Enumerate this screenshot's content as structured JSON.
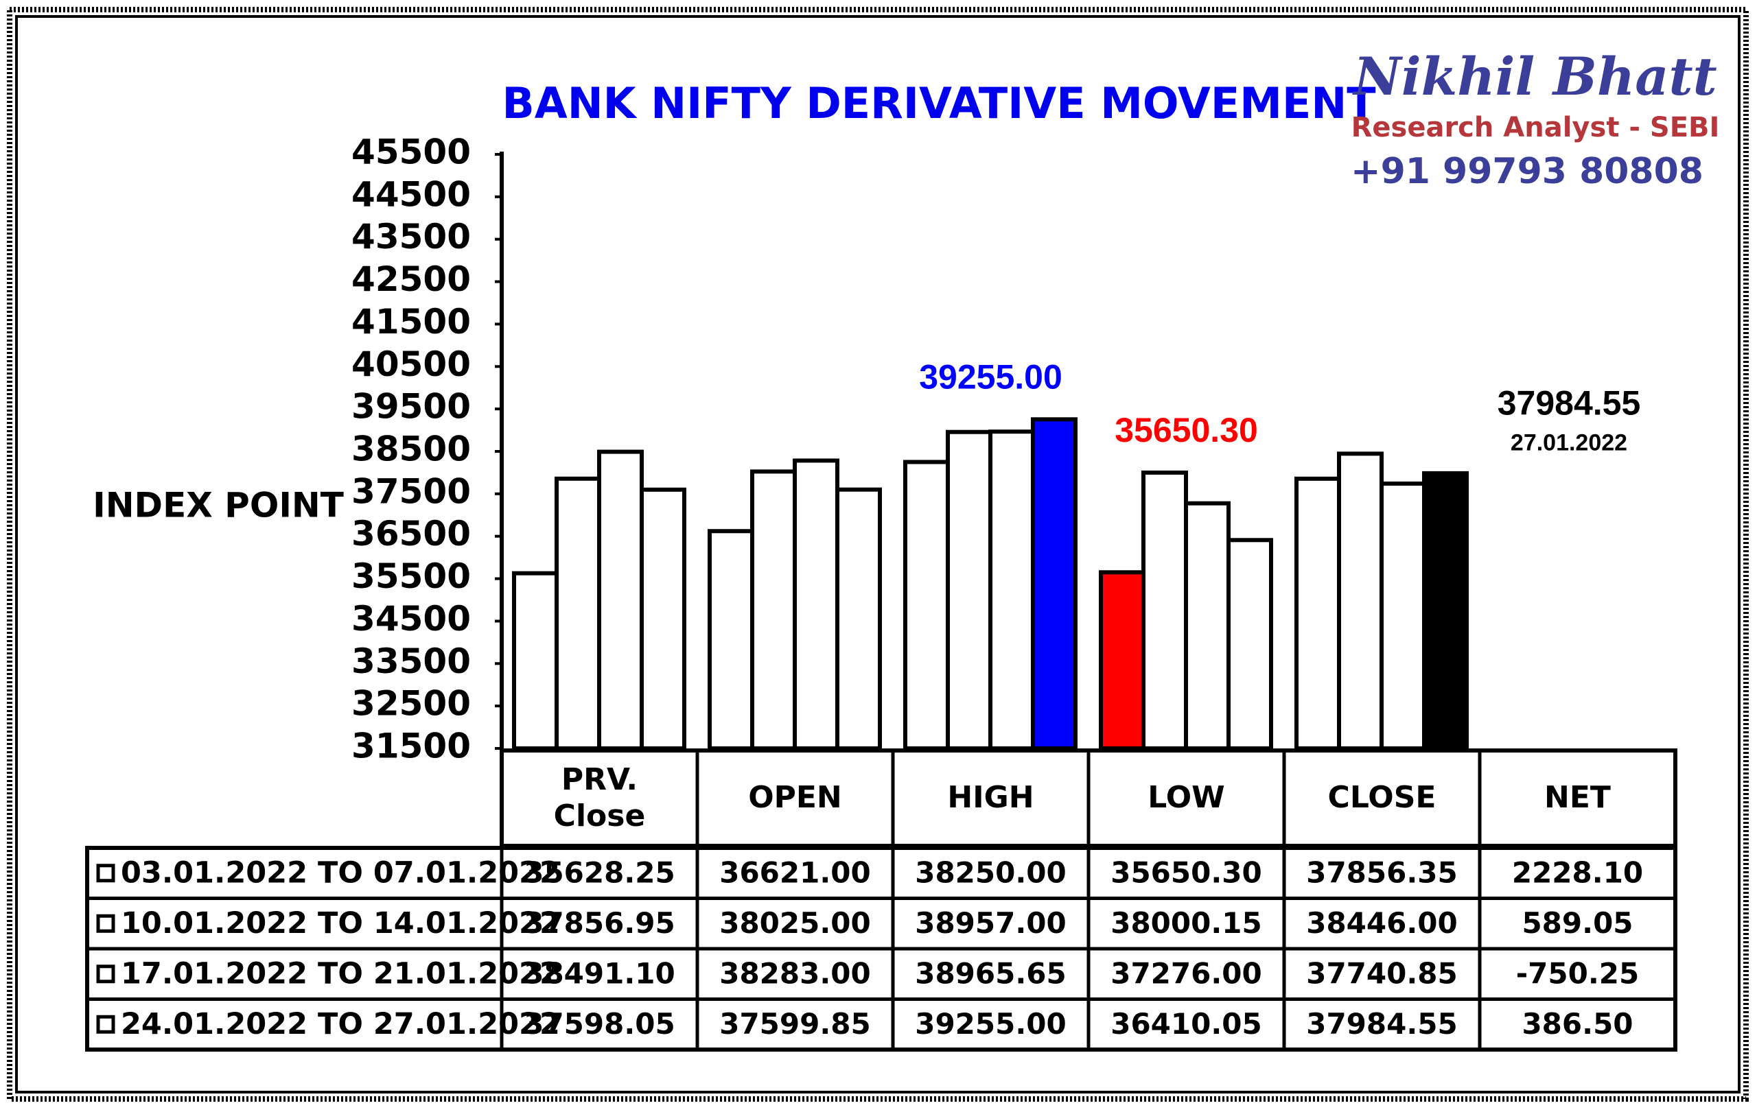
{
  "branding": {
    "name": "Nikhil Bhatt",
    "role": "Research Analyst - SEBI",
    "phone": "+91 99793 80808"
  },
  "chart_data": {
    "type": "bar",
    "title": "BANK NIFTY DERIVATIVE MOVEMENT",
    "ylabel": "INDEX POINT",
    "categories": [
      "PRV. Close",
      "OPEN",
      "HIGH",
      "LOW",
      "CLOSE"
    ],
    "net_header": "NET",
    "ylim": [
      31500,
      45500
    ],
    "yticks": [
      31500,
      32500,
      33500,
      34500,
      35500,
      36500,
      37500,
      38500,
      39500,
      40500,
      41500,
      42500,
      43500,
      44500,
      45500
    ],
    "grid": false,
    "bar_color": "#ffffff",
    "series": [
      {
        "name": "03.01.2022 TO 07.01.2022",
        "values": [
          35628.25,
          36621,
          38250,
          35650.3,
          37856.35
        ],
        "value_labels": [
          "35628.25",
          "36621.00",
          "38250.00",
          "35650.30",
          "37856.35"
        ],
        "colors": [
          "#ffffff",
          "#ffffff",
          "#ffffff",
          "#ff0000",
          "#ffffff"
        ],
        "net": 2228.1,
        "net_label": "2228.10"
      },
      {
        "name": "10.01.2022 TO 14.01.2022",
        "values": [
          37856.95,
          38025,
          38957,
          38000.15,
          38446
        ],
        "value_labels": [
          "37856.95",
          "38025.00",
          "38957.00",
          "38000.15",
          "38446.00"
        ],
        "colors": [
          "#ffffff",
          "#ffffff",
          "#ffffff",
          "#ffffff",
          "#ffffff"
        ],
        "net": 589.05,
        "net_label": "589.05"
      },
      {
        "name": "17.01.2022 TO 21.01.2022",
        "values": [
          38491.1,
          38283,
          38965.65,
          37276,
          37740.85
        ],
        "value_labels": [
          "38491.10",
          "38283.00",
          "38965.65",
          "37276.00",
          "37740.85"
        ],
        "colors": [
          "#ffffff",
          "#ffffff",
          "#ffffff",
          "#ffffff",
          "#ffffff"
        ],
        "net": -750.25,
        "net_label": "-750.25"
      },
      {
        "name": "24.01.2022 TO 27.01.2022",
        "values": [
          37598.05,
          37599.85,
          39255,
          36410.05,
          37984.55
        ],
        "value_labels": [
          "37598.05",
          "37599.85",
          "39255.00",
          "36410.05",
          "37984.55"
        ],
        "colors": [
          "#ffffff",
          "#ffffff",
          "#0000ff",
          "#ffffff",
          "#000000"
        ],
        "net": 386.5,
        "net_label": "386.50"
      }
    ],
    "annotations": [
      {
        "text": "27.01.2022"
      }
    ]
  }
}
